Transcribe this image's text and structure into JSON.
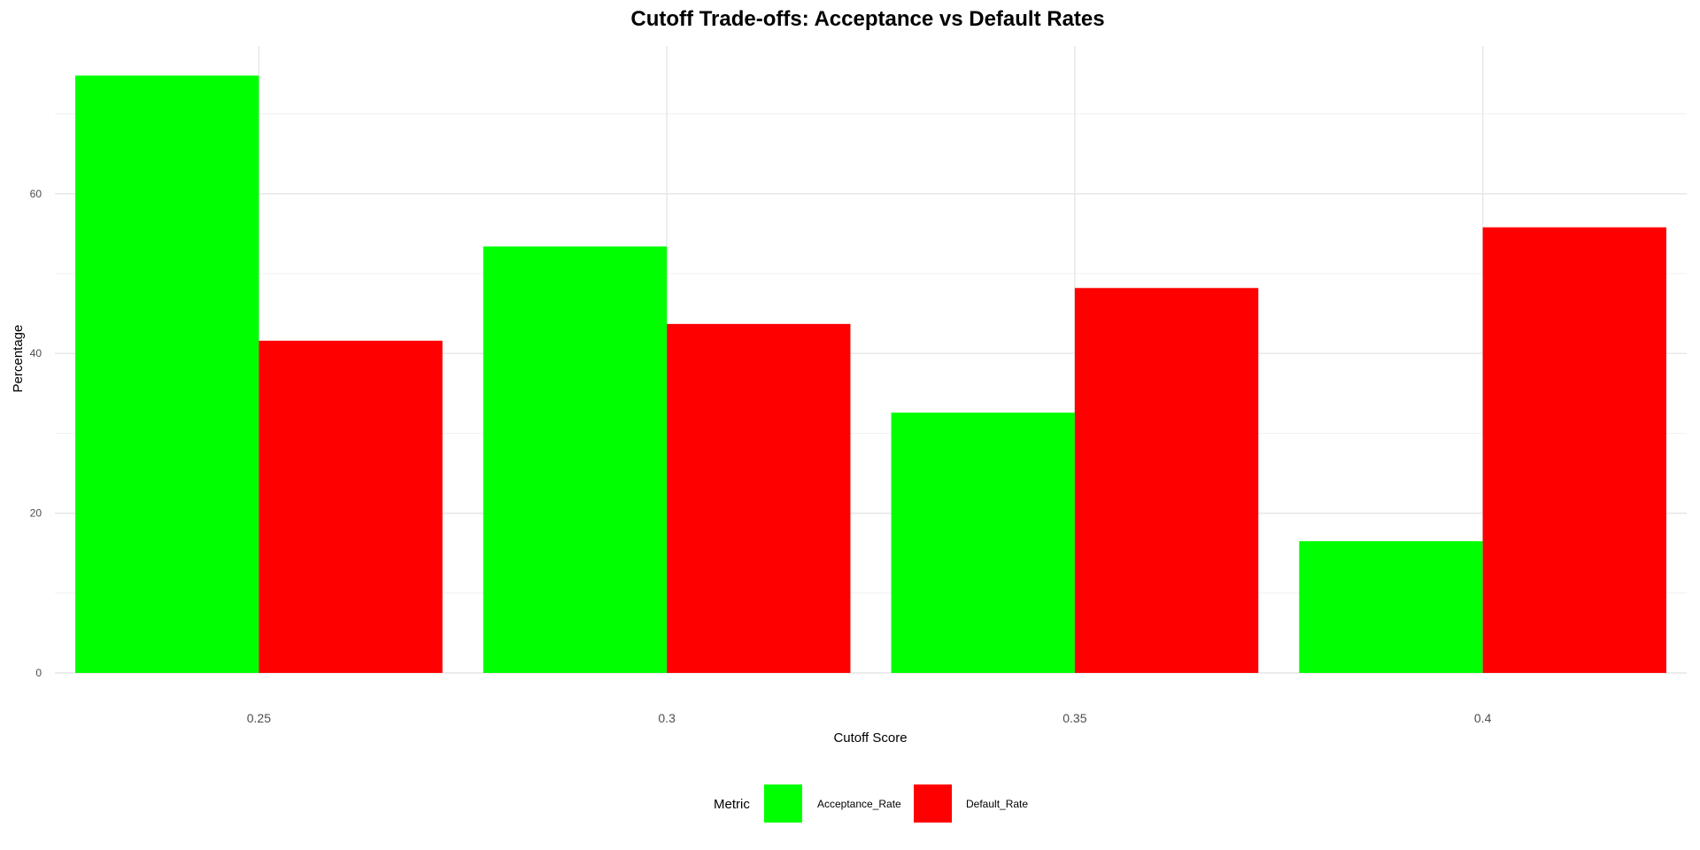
{
  "chart_data": {
    "type": "bar",
    "title": "Cutoff Trade-offs: Acceptance vs Default Rates",
    "xlabel": "Cutoff Score",
    "ylabel": "Percentage",
    "categories": [
      "0.25",
      "0.3",
      "0.35",
      "0.4"
    ],
    "series": [
      {
        "name": "Acceptance_Rate",
        "color": "#00ff00",
        "values": [
          74.8,
          53.4,
          32.6,
          16.5
        ]
      },
      {
        "name": "Default_Rate",
        "color": "#ff0000",
        "values": [
          41.6,
          43.7,
          48.2,
          55.8
        ]
      }
    ],
    "yticks": [
      0,
      20,
      40,
      60
    ],
    "ylim": [
      0,
      78.5
    ],
    "grid": true,
    "legend": {
      "title": "Metric",
      "position": "bottom"
    }
  }
}
